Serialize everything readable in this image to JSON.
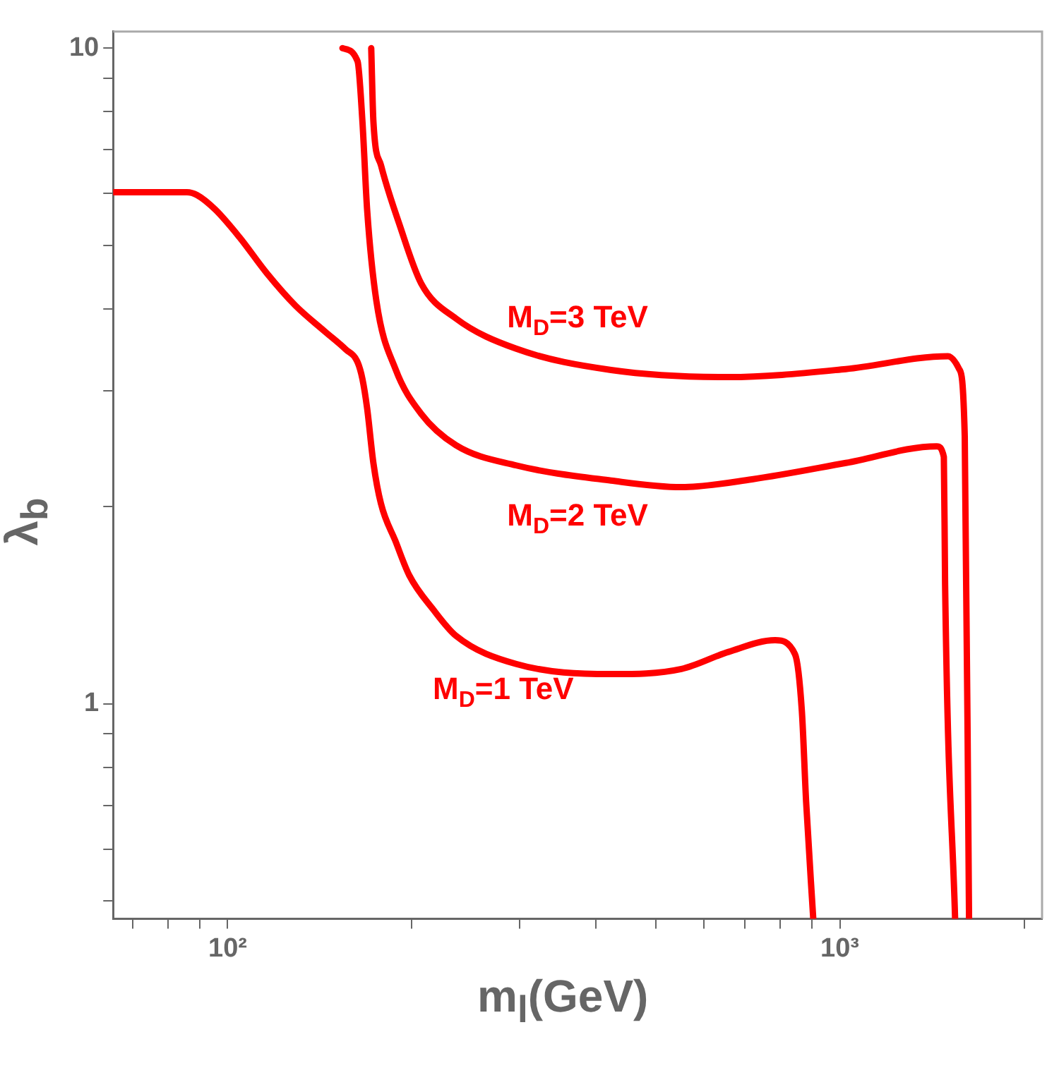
{
  "chart_data": {
    "type": "line",
    "xlabel": "m$_{l}$(GeV)",
    "ylabel": "λ$_{b}$",
    "log": "xy",
    "xlim": [
      65,
      2140
    ],
    "ylim": [
      0.47,
      10.6
    ],
    "xticks": [
      {
        "value": 70,
        "label": null
      },
      {
        "value": 80,
        "label": null
      },
      {
        "value": 90,
        "label": null
      },
      {
        "value": 100,
        "label": "10²"
      },
      {
        "value": 200,
        "label": null
      },
      {
        "value": 300,
        "label": null
      },
      {
        "value": 400,
        "label": null
      },
      {
        "value": 500,
        "label": null
      },
      {
        "value": 600,
        "label": null
      },
      {
        "value": 700,
        "label": null
      },
      {
        "value": 800,
        "label": null
      },
      {
        "value": 900,
        "label": null
      },
      {
        "value": 1000,
        "label": "10³"
      },
      {
        "value": 2000,
        "label": null
      }
    ],
    "yticks": [
      {
        "value": 0.5,
        "label": null
      },
      {
        "value": 0.6,
        "label": null
      },
      {
        "value": 0.7,
        "label": null
      },
      {
        "value": 0.8,
        "label": null
      },
      {
        "value": 0.9,
        "label": null
      },
      1,
      {
        "value": 2,
        "label": null
      },
      {
        "value": 3,
        "label": null
      },
      {
        "value": 4,
        "label": null
      },
      {
        "value": 5,
        "label": null
      },
      {
        "value": 6,
        "label": null
      },
      {
        "value": 7,
        "label": null
      },
      {
        "value": 8,
        "label": null
      },
      {
        "value": 9,
        "label": null
      },
      10
    ],
    "grid": false,
    "legend": false,
    "marker": "none",
    "line_style": "solid",
    "series": [
      {
        "color": "#ff0000",
        "x": [
          65,
          85.8,
          89.1,
          95.5,
          104.5,
          116,
          129,
          144,
          156,
          163,
          166,
          169,
          173,
          178,
          188,
          198,
          217,
          236,
          296,
          423,
          551,
          658,
          784,
          845,
          867,
          881,
          905
        ],
        "values": [
          6.03,
          6.03,
          5.97,
          5.67,
          5.15,
          4.53,
          4.05,
          3.7,
          3.47,
          3.32,
          3.13,
          2.82,
          2.33,
          2.02,
          1.77,
          1.57,
          1.39,
          1.27,
          1.15,
          1.11,
          1.13,
          1.2,
          1.25,
          1.19,
          0.975,
          0.709,
          0.47
        ]
      },
      {
        "color": "#ff0000",
        "x": [
          154,
          163,
          166,
          169,
          175,
          188,
          207,
          236,
          296,
          423,
          551,
          719,
          1023,
          1440,
          1479,
          1486,
          1543
        ],
        "values": [
          10,
          9.55,
          7.74,
          5.66,
          4.11,
          3.24,
          2.77,
          2.48,
          2.31,
          2.19,
          2.14,
          2.2,
          2.33,
          2.47,
          2.38,
          1.52,
          0.47
        ]
      },
      {
        "color": "#ff0000",
        "x": [
          171.6,
          173,
          178,
          191,
          207,
          236,
          296,
          423,
          658,
          1023,
          1502,
          1567,
          1600,
          1626
        ],
        "values": [
          10,
          7.74,
          6.63,
          5.37,
          4.38,
          3.87,
          3.48,
          3.23,
          3.15,
          3.24,
          3.39,
          3.24,
          2.56,
          0.47
        ]
      }
    ],
    "annotations": [
      "M$_{D}$=1 TeV",
      "M$_{D}$=2 TeV",
      "M$_{D}$=3 TeV"
    ]
  }
}
